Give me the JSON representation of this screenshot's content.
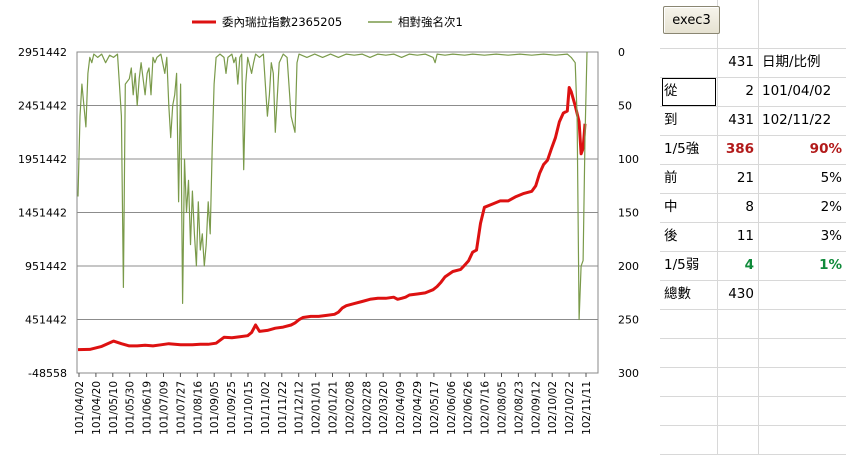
{
  "chart_data": {
    "type": "line",
    "legend": [
      "委內瑞拉指數2365205",
      "相對強名次1"
    ],
    "legend_position": "top",
    "grid": true,
    "y_left": {
      "ticks": [
        "2951442",
        "2451442",
        "1951442",
        "1451442",
        "951442",
        "451442",
        "-48558"
      ],
      "range": [
        -48558,
        2951442
      ]
    },
    "y_right": {
      "ticks": [
        "0",
        "50",
        "100",
        "150",
        "200",
        "250",
        "300"
      ],
      "range": [
        0,
        300
      ],
      "reversed": true
    },
    "x_ticks": [
      "101/04/02",
      "101/04/20",
      "101/05/10",
      "101/05/30",
      "101/06/19",
      "101/07/09",
      "101/07/27",
      "101/08/16",
      "101/09/05",
      "101/09/25",
      "101/10/15",
      "101/11/02",
      "101/11/22",
      "101/12/12",
      "102/01/01",
      "102/01/21",
      "102/02/08",
      "102/02/28",
      "102/03/20",
      "102/04/09",
      "102/04/29",
      "102/05/17",
      "102/06/06",
      "102/06/26",
      "102/07/16",
      "102/08/05",
      "102/08/23",
      "102/09/12",
      "102/10/02",
      "102/10/22",
      "102/11/11"
    ],
    "series": [
      {
        "name": "委內瑞拉指數2365205",
        "color": "#dd1111",
        "axis": "left",
        "points": [
          [
            0,
            170000
          ],
          [
            3,
            172000
          ],
          [
            6,
            200000
          ],
          [
            9,
            250000
          ],
          [
            11,
            225000
          ],
          [
            13,
            205000
          ],
          [
            15,
            205000
          ],
          [
            17,
            210000
          ],
          [
            19,
            205000
          ],
          [
            21,
            215000
          ],
          [
            23,
            225000
          ],
          [
            26,
            215000
          ],
          [
            29,
            215000
          ],
          [
            31,
            220000
          ],
          [
            33,
            220000
          ],
          [
            35,
            230000
          ],
          [
            37,
            285000
          ],
          [
            39,
            280000
          ],
          [
            41,
            290000
          ],
          [
            43,
            300000
          ],
          [
            44,
            330000
          ],
          [
            45,
            400000
          ],
          [
            46,
            340000
          ],
          [
            48,
            350000
          ],
          [
            50,
            370000
          ],
          [
            52,
            380000
          ],
          [
            54,
            400000
          ],
          [
            55,
            420000
          ],
          [
            56,
            450000
          ],
          [
            57,
            470000
          ],
          [
            59,
            480000
          ],
          [
            61,
            480000
          ],
          [
            63,
            490000
          ],
          [
            65,
            500000
          ],
          [
            66,
            520000
          ],
          [
            67,
            560000
          ],
          [
            68,
            580000
          ],
          [
            70,
            600000
          ],
          [
            72,
            620000
          ],
          [
            74,
            640000
          ],
          [
            76,
            650000
          ],
          [
            78,
            650000
          ],
          [
            80,
            660000
          ],
          [
            81,
            640000
          ],
          [
            82,
            650000
          ],
          [
            83,
            660000
          ],
          [
            84,
            680000
          ],
          [
            86,
            690000
          ],
          [
            88,
            700000
          ],
          [
            90,
            730000
          ],
          [
            91,
            760000
          ],
          [
            92,
            800000
          ],
          [
            93,
            850000
          ],
          [
            95,
            900000
          ],
          [
            97,
            920000
          ],
          [
            98,
            960000
          ],
          [
            99,
            1000000
          ],
          [
            100,
            1080000
          ],
          [
            101,
            1100000
          ],
          [
            102,
            1350000
          ],
          [
            103,
            1500000
          ],
          [
            105,
            1530000
          ],
          [
            107,
            1560000
          ],
          [
            109,
            1560000
          ],
          [
            111,
            1600000
          ],
          [
            113,
            1630000
          ],
          [
            115,
            1650000
          ],
          [
            116,
            1700000
          ],
          [
            117,
            1820000
          ],
          [
            118,
            1900000
          ],
          [
            119,
            1940000
          ],
          [
            120,
            2050000
          ],
          [
            121,
            2150000
          ],
          [
            122,
            2300000
          ],
          [
            123,
            2380000
          ],
          [
            124,
            2400000
          ],
          [
            124.5,
            2620000
          ],
          [
            125,
            2580000
          ],
          [
            126,
            2450000
          ],
          [
            127,
            2300000
          ],
          [
            127.5,
            2000000
          ],
          [
            128,
            2050000
          ],
          [
            128.5,
            2280000
          ]
        ]
      },
      {
        "name": "相對強名次1",
        "color": "#7a9a4a",
        "axis": "right",
        "points": [
          [
            0,
            135
          ],
          [
            0.5,
            60
          ],
          [
            1,
            30
          ],
          [
            1.5,
            50
          ],
          [
            2,
            70
          ],
          [
            2.5,
            20
          ],
          [
            3,
            5
          ],
          [
            3.5,
            10
          ],
          [
            4,
            2
          ],
          [
            5,
            5
          ],
          [
            6,
            2
          ],
          [
            7,
            10
          ],
          [
            8,
            3
          ],
          [
            9,
            5
          ],
          [
            10,
            2
          ],
          [
            10.5,
            30
          ],
          [
            11,
            60
          ],
          [
            11.5,
            220
          ],
          [
            12,
            30
          ],
          [
            13,
            25
          ],
          [
            13.5,
            15
          ],
          [
            14,
            40
          ],
          [
            14.5,
            20
          ],
          [
            15,
            50
          ],
          [
            15.5,
            25
          ],
          [
            16,
            10
          ],
          [
            17,
            40
          ],
          [
            17.5,
            20
          ],
          [
            18,
            15
          ],
          [
            18.5,
            40
          ],
          [
            19,
            5
          ],
          [
            19.5,
            10
          ],
          [
            20,
            5
          ],
          [
            21,
            2
          ],
          [
            22,
            20
          ],
          [
            22.5,
            5
          ],
          [
            23,
            50
          ],
          [
            23.5,
            80
          ],
          [
            24,
            50
          ],
          [
            24.5,
            40
          ],
          [
            25,
            20
          ],
          [
            25.5,
            140
          ],
          [
            26,
            30
          ],
          [
            26.5,
            235
          ],
          [
            27,
            100
          ],
          [
            27.5,
            150
          ],
          [
            28,
            120
          ],
          [
            28.5,
            180
          ],
          [
            29,
            130
          ],
          [
            29.5,
            170
          ],
          [
            30,
            200
          ],
          [
            30.5,
            140
          ],
          [
            31,
            185
          ],
          [
            31.5,
            170
          ],
          [
            32,
            200
          ],
          [
            32.5,
            180
          ],
          [
            33,
            140
          ],
          [
            33.5,
            170
          ],
          [
            34,
            90
          ],
          [
            34.5,
            30
          ],
          [
            35,
            5
          ],
          [
            36,
            2
          ],
          [
            37,
            5
          ],
          [
            37.5,
            20
          ],
          [
            38,
            5
          ],
          [
            39,
            2
          ],
          [
            39.5,
            10
          ],
          [
            40,
            5
          ],
          [
            40.5,
            30
          ],
          [
            41,
            5
          ],
          [
            41.5,
            2
          ],
          [
            42,
            110
          ],
          [
            42.5,
            30
          ],
          [
            43,
            5
          ],
          [
            44,
            20
          ],
          [
            44.5,
            10
          ],
          [
            45,
            2
          ],
          [
            46,
            5
          ],
          [
            47,
            2
          ],
          [
            48,
            60
          ],
          [
            48.5,
            40
          ],
          [
            49,
            10
          ],
          [
            49.5,
            20
          ],
          [
            50,
            75
          ],
          [
            51,
            10
          ],
          [
            52,
            2
          ],
          [
            53,
            5
          ],
          [
            54,
            60
          ],
          [
            55,
            75
          ],
          [
            55.5,
            10
          ],
          [
            56,
            2
          ],
          [
            58,
            5
          ],
          [
            60,
            2
          ],
          [
            62,
            5
          ],
          [
            64,
            2
          ],
          [
            66,
            5
          ],
          [
            68,
            2
          ],
          [
            70,
            3
          ],
          [
            72,
            2
          ],
          [
            74,
            5
          ],
          [
            76,
            2
          ],
          [
            78,
            3
          ],
          [
            80,
            2
          ],
          [
            82,
            5
          ],
          [
            84,
            2
          ],
          [
            86,
            3
          ],
          [
            88,
            2
          ],
          [
            90,
            5
          ],
          [
            90.5,
            10
          ],
          [
            91,
            2
          ],
          [
            93,
            3
          ],
          [
            95,
            2
          ],
          [
            98,
            3
          ],
          [
            100,
            2
          ],
          [
            103,
            3
          ],
          [
            106,
            2
          ],
          [
            109,
            3
          ],
          [
            112,
            2
          ],
          [
            115,
            3
          ],
          [
            118,
            2
          ],
          [
            121,
            3
          ],
          [
            124,
            2
          ],
          [
            125,
            5
          ],
          [
            126,
            10
          ],
          [
            126.5,
            60
          ],
          [
            127,
            250
          ],
          [
            127.5,
            200
          ],
          [
            128,
            195
          ],
          [
            128.5,
            80
          ],
          [
            129,
            0
          ]
        ]
      }
    ]
  },
  "toolbar": {
    "exec_label": "exec3"
  },
  "table": {
    "header": {
      "value": "431",
      "label": "日期/比例"
    },
    "rows": [
      {
        "label": "從",
        "value": "2",
        "extra": "101/04/02",
        "extra_align": "left"
      },
      {
        "label": "到",
        "value": "431",
        "extra": "102/11/22",
        "extra_align": "left"
      },
      {
        "label": "1/5強",
        "value": "386",
        "extra": "90%",
        "extra_align": "right",
        "color": "#b21a1a"
      },
      {
        "label": "前",
        "value": "21",
        "extra": "5%",
        "extra_align": "right"
      },
      {
        "label": "中",
        "value": "8",
        "extra": "2%",
        "extra_align": "right"
      },
      {
        "label": "後",
        "value": "11",
        "extra": "3%",
        "extra_align": "right"
      },
      {
        "label": "1/5弱",
        "value": "4",
        "extra": "1%",
        "extra_align": "right",
        "color": "#0f8a3a"
      },
      {
        "label": "總數",
        "value": "430",
        "extra": "",
        "extra_align": "right"
      }
    ]
  }
}
